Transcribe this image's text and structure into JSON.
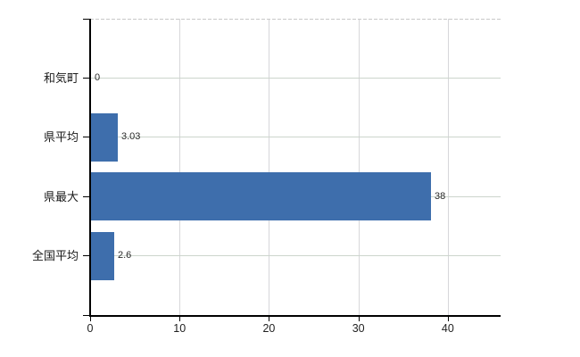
{
  "chart_data": {
    "type": "bar",
    "orientation": "horizontal",
    "title": "",
    "xlabel": "",
    "ylabel": "",
    "categories": [
      "和気町",
      "県平均",
      "県最大",
      "全国平均"
    ],
    "values": [
      0,
      3.03,
      38,
      2.6
    ],
    "value_labels": [
      "0",
      "3.03",
      "38",
      "2.6"
    ],
    "xticks": [
      0,
      10,
      20,
      30,
      40
    ],
    "xtick_labels": [
      "0",
      "10",
      "20",
      "30",
      "40"
    ],
    "xlim": [
      0,
      45.9
    ],
    "grid": true,
    "legend": false,
    "colors": {
      "bar": "#3e6eac",
      "axis": "#000000",
      "category_label": "#1a1a1a",
      "tick_label": "#1f1f1f",
      "value_label": "#2b2b2b",
      "hgrid": "#ccd5cc",
      "vgrid": "#d7d7da",
      "top_border": "#c9c9c9",
      "background": "#ffffff"
    }
  }
}
